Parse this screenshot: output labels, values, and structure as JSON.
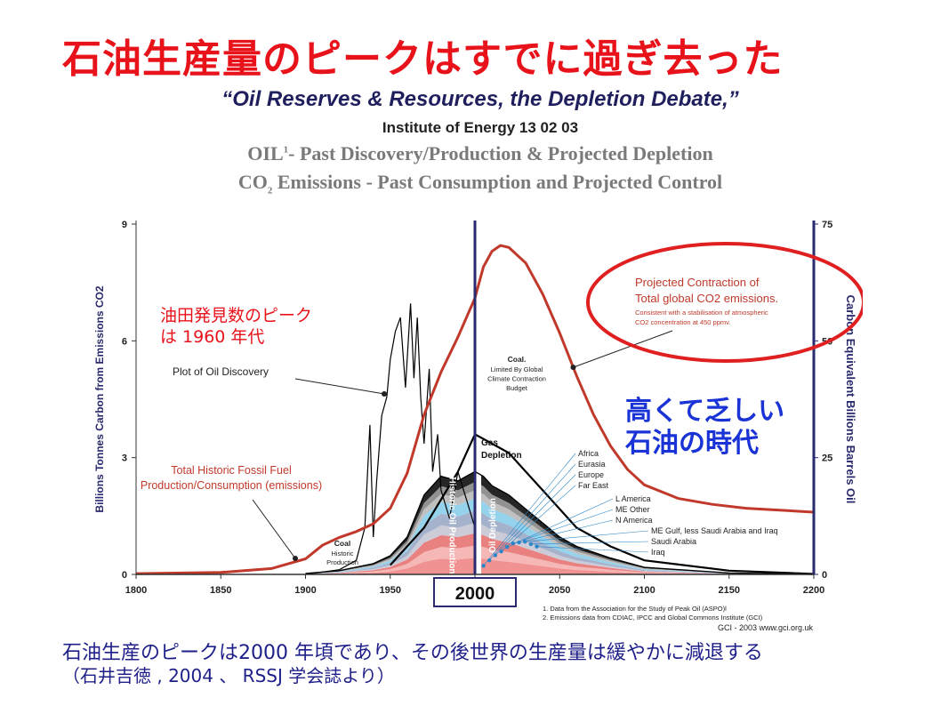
{
  "slide": {
    "jp_title": "石油生産量のピークはすでに過ぎ去った",
    "en_quote": "“Oil Reserves & Resources, the Depletion Debate,”",
    "institute": "Institute of Energy 13 02 03",
    "heading_oil_a": "OIL",
    "heading_oil_sup": "1",
    "heading_oil_b": "- Past Discovery/Production & Projected Depletion",
    "heading_co2_a": "CO",
    "heading_co2_sub": "2",
    "heading_co2_b": " Emissions - Past Consumption and Projected Control",
    "footer_line1": "石油生産のピークは2000 年頃であり、その後世界の生産量は緩やかに減退する",
    "footer_line2": "（石井吉徳 , 2004 、 RSSJ 学会誌より）"
  },
  "colors": {
    "title_red": "#e8121b",
    "emission_curve": "#c0392b",
    "axis_navy": "#2a2a6e",
    "highlight_blue": "#1a33d6",
    "oval_red": "#e02020"
  },
  "chart_data": {
    "type": "area",
    "x_axis": {
      "label": "",
      "range": [
        1800,
        2200
      ],
      "ticks": [
        "1800",
        "1850",
        "1900",
        "1950",
        "2000",
        "2050",
        "2100",
        "2150",
        "2200"
      ]
    },
    "y_left": {
      "label": "Billions Tonnes Carbon from Emissions CO2",
      "range": [
        0,
        9
      ],
      "ticks": [
        "0",
        "3",
        "6",
        "9"
      ]
    },
    "y_right": {
      "label": "Carbon Equivalent Billions Barrels Oil",
      "range": [
        0,
        75
      ],
      "ticks": [
        "0",
        "25",
        "50",
        "75"
      ]
    },
    "marker_year": "2000",
    "series": [
      {
        "name": "Total Historic Fossil Fuel Production/Consumption (emissions)",
        "axis": "left",
        "x": [
          1800,
          1850,
          1880,
          1900,
          1910,
          1920,
          1930,
          1940,
          1950,
          1960,
          1970,
          1980,
          1990,
          2000
        ],
        "y": [
          0.02,
          0.05,
          0.15,
          0.4,
          0.75,
          0.95,
          1.1,
          1.3,
          1.7,
          2.6,
          4.1,
          5.2,
          6.1,
          7.1
        ]
      },
      {
        "name": "Projected Contraction of Total global CO2 emissions.",
        "axis": "left",
        "x": [
          2000,
          2005,
          2010,
          2015,
          2020,
          2030,
          2040,
          2050,
          2060,
          2070,
          2080,
          2090,
          2100,
          2120,
          2140,
          2160,
          2180,
          2200
        ],
        "y": [
          7.1,
          7.9,
          8.3,
          8.45,
          8.4,
          8.0,
          7.2,
          6.2,
          5.1,
          4.1,
          3.3,
          2.7,
          2.3,
          1.95,
          1.8,
          1.7,
          1.65,
          1.6
        ]
      },
      {
        "name": "Plot of Oil Discovery",
        "axis": "right",
        "x": [
          1900,
          1920,
          1930,
          1935,
          1938,
          1940,
          1942,
          1945,
          1948,
          1950,
          1953,
          1956,
          1959,
          1962,
          1964,
          1966,
          1968,
          1970,
          1973,
          1975,
          1978,
          1980,
          1985,
          1990,
          1995,
          2000
        ],
        "y": [
          0,
          1,
          3,
          10,
          32,
          8,
          20,
          34,
          38,
          46,
          52,
          55,
          40,
          58,
          42,
          55,
          38,
          28,
          44,
          22,
          30,
          18,
          12,
          22,
          16,
          10
        ]
      },
      {
        "name": "Historic Oil Production",
        "axis": "right",
        "x": [
          1900,
          1920,
          1940,
          1950,
          1960,
          1970,
          1980,
          1990,
          2000
        ],
        "y": [
          0.2,
          0.8,
          2.3,
          4,
          8,
          17,
          21,
          20,
          22
        ]
      },
      {
        "name": "Gas Depletion",
        "axis": "right",
        "x": [
          1950,
          1970,
          1990,
          2000,
          2010,
          2020,
          2030,
          2040,
          2050,
          2060,
          2080,
          2100,
          2150,
          2200
        ],
        "y": [
          2,
          10,
          22,
          30,
          28,
          26,
          22,
          18,
          14,
          10,
          6,
          3,
          0.8,
          0.1
        ]
      },
      {
        "name": "Oil Depletion",
        "axis": "right",
        "x": [
          2000,
          2005,
          2010,
          2020,
          2030,
          2040,
          2050,
          2060,
          2080,
          2100,
          2150,
          2200
        ],
        "y": [
          22,
          21,
          19,
          17,
          14,
          11,
          8,
          6,
          3.5,
          1.5,
          0.3,
          0
        ]
      }
    ],
    "depletion_regions": [
      "Africa",
      "Eurasia",
      "Europe",
      "Far East",
      "L America",
      "ME Other",
      "N America",
      "ME Gulf, less Saudi Arabia and Iraq",
      "Saudi Arabia",
      "Iraq"
    ],
    "annotations": {
      "jp_discovery_peak": "油田発見数のピーク は 1960 年代",
      "plot_of_oil_discovery": "Plot of Oil Discovery",
      "total_historic": "Total Historic Fossil Fuel Production/Consumption (emissions)",
      "coal_historic_title": "Coal",
      "coal_historic_sub": "Historic Production",
      "coal_limited_title": "Coal.",
      "coal_limited_sub": "Limited By Global Climate Contraction Budget",
      "gas_depletion": "Gas Depletion",
      "historic_oil_production": "Historic Oil Production",
      "oil_depletion": "Oil Depletion",
      "projected_line1": "Projected Contraction of",
      "projected_line2": "Total global CO2 emissions.",
      "projected_line3": "Consistent with a stabilisation of atmospheric",
      "projected_line4": "CO2 concentration at 450 ppmv.",
      "jp_high_scarce_1": "高くて乏しい",
      "jp_high_scarce_2": "石油の時代",
      "source_1": "1. Data from the Association for the Study of Peak Oil (ASPO)l",
      "source_2": "2. Emissions data from CDIAC, IPCC and Global Commons Institute (GCI)",
      "credit": "GCI - 2003   www.gci.org.uk"
    }
  }
}
